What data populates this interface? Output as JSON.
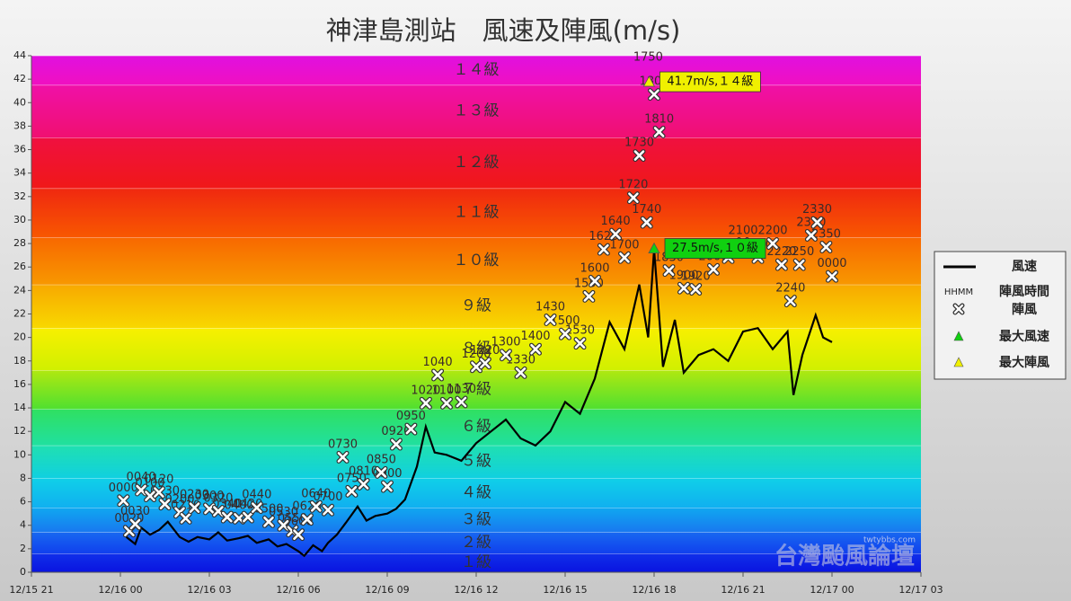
{
  "chart_data": {
    "type": "line",
    "title": "神津島測站　風速及陣風(m/s)",
    "xlim": [
      -3,
      27
    ],
    "xticks": [
      {
        "value": -3,
        "label": "12/15 21"
      },
      {
        "value": 0,
        "label": "12/16 00"
      },
      {
        "value": 3,
        "label": "12/16 03"
      },
      {
        "value": 6,
        "label": "12/16 06"
      },
      {
        "value": 9,
        "label": "12/16 09"
      },
      {
        "value": 12,
        "label": "12/16 12"
      },
      {
        "value": 15,
        "label": "12/16 15"
      },
      {
        "value": 18,
        "label": "12/16 18"
      },
      {
        "value": 21,
        "label": "12/16 21"
      },
      {
        "value": 24,
        "label": "12/17 00"
      },
      {
        "value": 27,
        "label": "12/17 03"
      }
    ],
    "ylim": [
      0,
      44
    ],
    "yticks": [
      0,
      2,
      4,
      6,
      8,
      10,
      12,
      14,
      16,
      18,
      20,
      22,
      24,
      26,
      28,
      30,
      32,
      34,
      36,
      38,
      40,
      42,
      44
    ],
    "grid": false,
    "bands": [
      {
        "label": "１級",
        "from": 0,
        "to": 1.6,
        "colors": [
          "#0a14e0",
          "#1030ea"
        ]
      },
      {
        "label": "２級",
        "from": 1.6,
        "to": 3.4,
        "colors": [
          "#1040ee",
          "#1868f0"
        ]
      },
      {
        "label": "３級",
        "from": 3.4,
        "to": 5.5,
        "colors": [
          "#1878f0",
          "#10a8f0"
        ]
      },
      {
        "label": "４級",
        "from": 5.5,
        "to": 8.0,
        "colors": [
          "#10b0f0",
          "#10d0e8"
        ]
      },
      {
        "label": "５級",
        "from": 8.0,
        "to": 10.8,
        "colors": [
          "#10d0e0",
          "#20e0b0"
        ]
      },
      {
        "label": "６級",
        "from": 10.8,
        "to": 13.9,
        "colors": [
          "#20e0a0",
          "#30e060"
        ]
      },
      {
        "label": "７級",
        "from": 13.9,
        "to": 17.2,
        "colors": [
          "#50e030",
          "#b0e810"
        ]
      },
      {
        "label": "８級",
        "from": 17.2,
        "to": 20.8,
        "colors": [
          "#d0f000",
          "#f8f000"
        ]
      },
      {
        "label": "９級",
        "from": 20.8,
        "to": 24.5,
        "colors": [
          "#f8d800",
          "#f8a800"
        ]
      },
      {
        "label": "１０級",
        "from": 24.5,
        "to": 28.5,
        "colors": [
          "#f89800",
          "#f86800"
        ]
      },
      {
        "label": "１１級",
        "from": 28.5,
        "to": 32.7,
        "colors": [
          "#f85800",
          "#f02810"
        ]
      },
      {
        "label": "１２級",
        "from": 32.7,
        "to": 37.0,
        "colors": [
          "#f01818",
          "#f01040"
        ]
      },
      {
        "label": "１３級",
        "from": 37.0,
        "to": 41.5,
        "colors": [
          "#f01070",
          "#f010a8"
        ]
      },
      {
        "label": "１４級",
        "from": 41.5,
        "to": 44,
        "colors": [
          "#f010c0",
          "#e010e0"
        ]
      }
    ],
    "series": [
      {
        "name": "風速",
        "color": "#000000",
        "x": [
          0.2,
          0.5,
          0.7,
          1.0,
          1.3,
          1.6,
          2.0,
          2.3,
          2.6,
          3.0,
          3.3,
          3.6,
          4.0,
          4.3,
          4.6,
          5.0,
          5.3,
          5.6,
          6.0,
          6.2,
          6.5,
          6.8,
          7.0,
          7.3,
          7.6,
          8.0,
          8.3,
          8.6,
          9.0,
          9.3,
          9.6,
          10.0,
          10.3,
          10.6,
          11.0,
          11.5,
          12.0,
          12.5,
          13.0,
          13.5,
          14.0,
          14.5,
          15.0,
          15.5,
          16.0,
          16.5,
          17.0,
          17.5,
          17.8,
          18.0,
          18.3,
          18.7,
          19.0,
          19.5,
          20.0,
          20.5,
          21.0,
          21.5,
          22.0,
          22.5,
          22.7,
          23.0,
          23.45,
          23.7,
          24.0
        ],
        "values": [
          3.0,
          2.4,
          3.8,
          3.2,
          3.6,
          4.3,
          3.0,
          2.6,
          3.0,
          2.8,
          3.4,
          2.7,
          2.9,
          3.1,
          2.5,
          2.8,
          2.2,
          2.4,
          1.8,
          1.4,
          2.3,
          1.8,
          2.5,
          3.2,
          4.2,
          5.6,
          4.4,
          4.8,
          5.0,
          5.4,
          6.2,
          9.0,
          12.4,
          10.2,
          10.0,
          9.5,
          11.0,
          12.0,
          13.0,
          11.4,
          10.8,
          12.0,
          14.5,
          13.5,
          16.5,
          21.3,
          19.0,
          24.5,
          20.0,
          27.5,
          17.5,
          21.5,
          17.0,
          18.5,
          19.0,
          18.0,
          20.5,
          20.8,
          19.0,
          20.5,
          15.1,
          18.5,
          21.9,
          20.0,
          19.6
        ]
      },
      {
        "name": "陣風",
        "color": "#ffffff",
        "x": [
          0.1,
          0.3,
          0.5,
          0.7,
          1.0,
          1.3,
          1.5,
          2.0,
          2.2,
          2.5,
          3.0,
          3.3,
          3.6,
          4.0,
          4.3,
          4.6,
          5.0,
          5.5,
          5.8,
          6.0,
          6.3,
          6.6,
          7.0,
          7.5,
          7.8,
          8.2,
          8.8,
          9.0,
          9.3,
          9.8,
          10.3,
          10.7,
          11.0,
          11.5,
          12.0,
          12.3,
          13.0,
          13.5,
          14.0,
          14.5,
          15.0,
          15.5,
          15.8,
          16.0,
          16.3,
          16.7,
          17.0,
          17.3,
          17.5,
          17.75,
          18.0,
          18.17,
          18.5,
          19.0,
          19.4,
          20.0,
          20.5,
          21.0,
          21.5,
          22.0,
          22.3,
          22.6,
          22.9,
          23.3,
          23.5,
          23.8,
          24.0
        ],
        "values": [
          6.1,
          3.5,
          4.1,
          7.0,
          6.5,
          6.8,
          5.8,
          5.1,
          4.6,
          5.5,
          5.4,
          5.2,
          4.7,
          4.6,
          4.7,
          5.5,
          4.3,
          4.0,
          3.5,
          3.2,
          4.5,
          5.6,
          5.3,
          9.8,
          6.9,
          7.5,
          8.5,
          7.3,
          10.9,
          12.2,
          14.4,
          16.8,
          14.4,
          14.5,
          17.5,
          17.8,
          18.5,
          17.0,
          19.0,
          21.5,
          20.3,
          19.5,
          23.5,
          24.8,
          27.5,
          28.8,
          26.8,
          31.9,
          35.5,
          29.8,
          40.7,
          37.5,
          25.7,
          24.2,
          24.1,
          25.8,
          26.8,
          28.0,
          26.8,
          28.0,
          26.2,
          23.1,
          26.2,
          28.7,
          29.8,
          27.7,
          25.2
        ],
        "labels": [
          "0000",
          "0020",
          "0030",
          "0040",
          "0100",
          "0120",
          "0130",
          "0200",
          "0210",
          "0230",
          "0300",
          "0320",
          "0340",
          "0400",
          "0420",
          "0440",
          "0500",
          "0530",
          "0550",
          "0600",
          "0620",
          "0640",
          "0700",
          "0730",
          "0750",
          "0810",
          "0850",
          "0900",
          "0920",
          "0950",
          "1020",
          "1040",
          "1100",
          "1130",
          "1200",
          "1220",
          "1300",
          "1330",
          "1400",
          "1430",
          "1500",
          "1530",
          "1550",
          "1600",
          "1620",
          "1640",
          "1700",
          "1720",
          "1730",
          "1740",
          "1800",
          "1810",
          "1830",
          "1900",
          "1920",
          "2000",
          "2030",
          "2100",
          "2130",
          "2200",
          "2220",
          "2240",
          "2250",
          "2320",
          "2330",
          "2350",
          "0000"
        ]
      }
    ],
    "max_wind": {
      "name": "最大風速",
      "color": "#10d010",
      "x": 18.0,
      "value": 27.5,
      "label": "27.5m/s,１０級"
    },
    "max_gust": {
      "name": "最大陣風",
      "color": "#f0f000",
      "x": 17.83,
      "value": 41.7,
      "label": "41.7m/s,１４級",
      "time": "1750"
    },
    "gust_time_key": "HHMM",
    "gust_time_name": "陣風時間",
    "watermark": "台灣颱風論壇",
    "watermark_url": "twtybbs.com"
  }
}
